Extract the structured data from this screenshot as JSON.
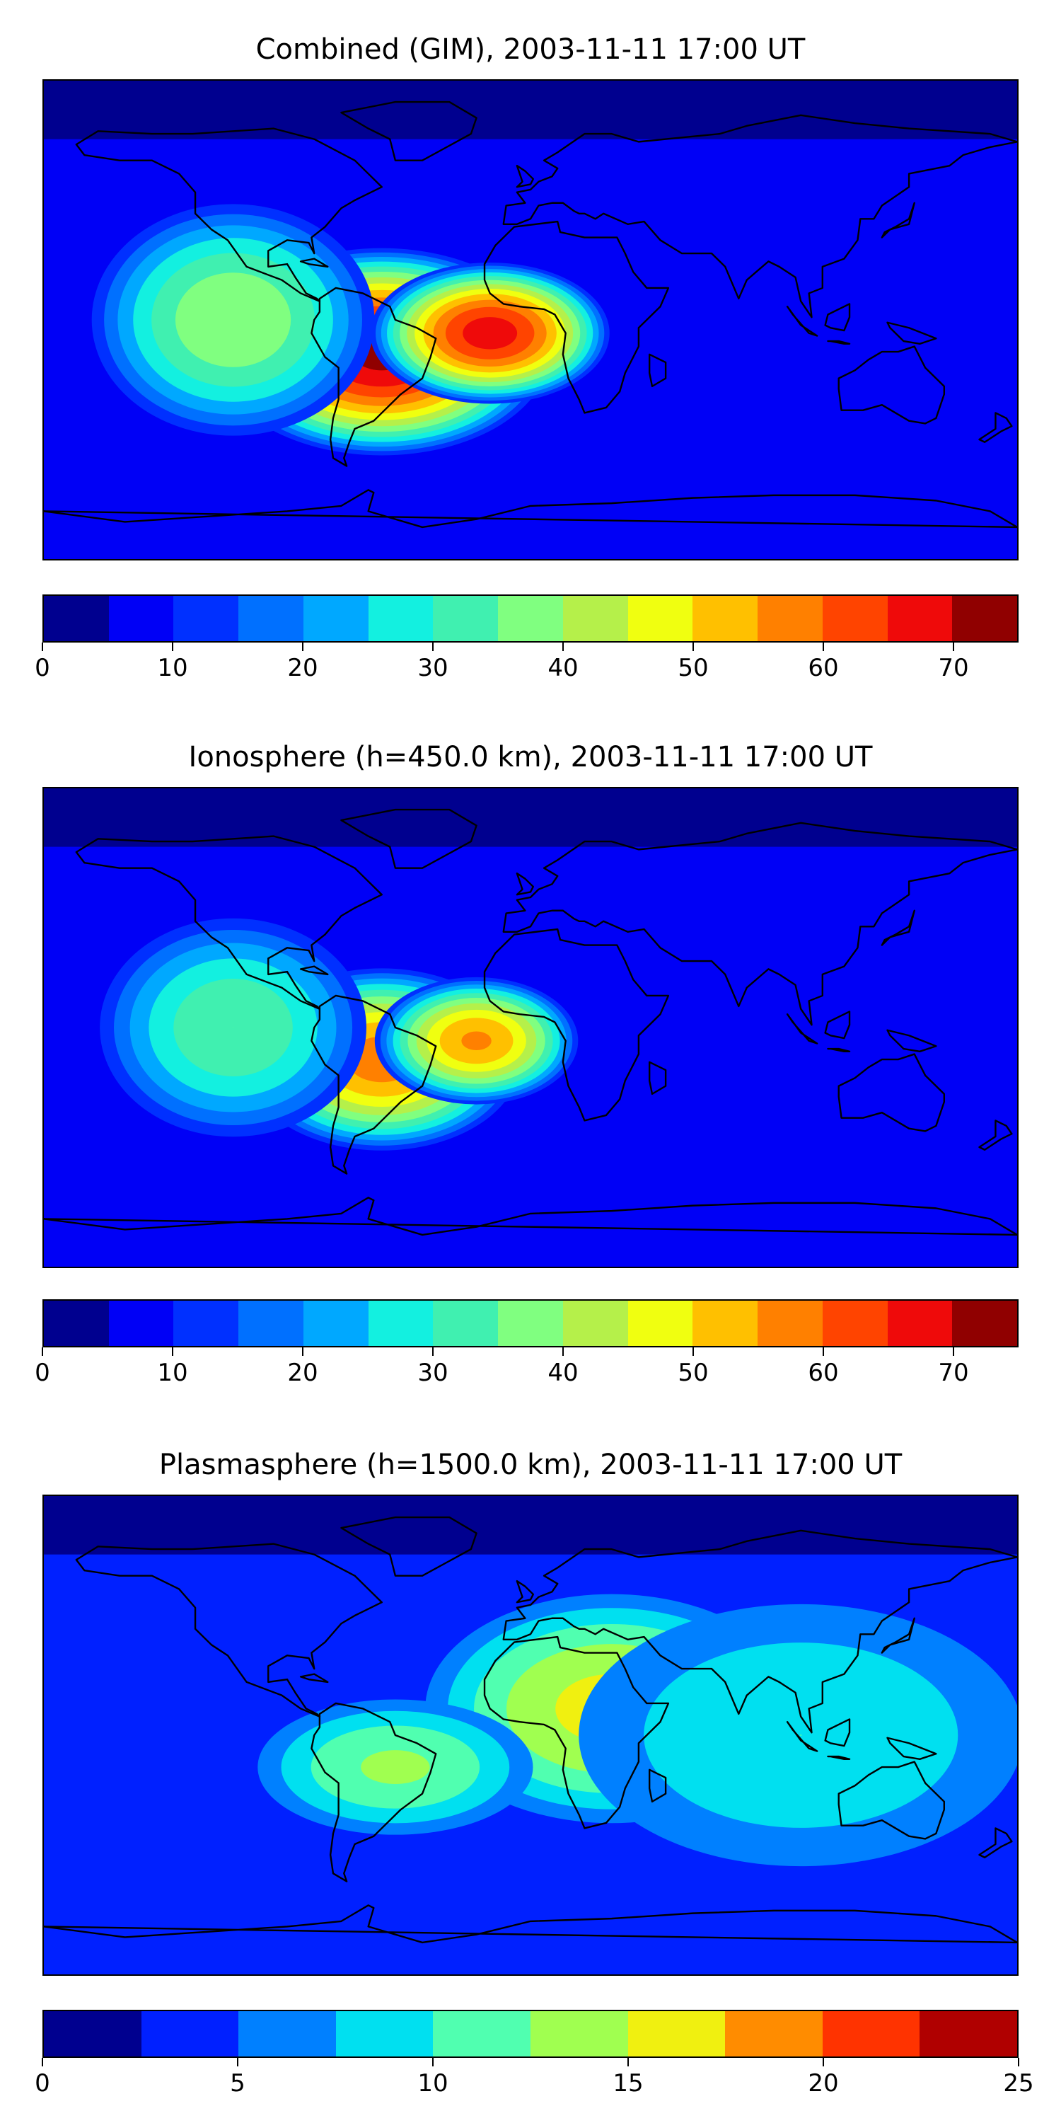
{
  "palette_14": [
    "#00008f",
    "#0000f6",
    "#0030ff",
    "#0070ff",
    "#00a8ff",
    "#13f0e0",
    "#40f0b0",
    "#80ff80",
    "#b5f04a",
    "#f0ff10",
    "#ffc000",
    "#ff8000",
    "#ff4400",
    "#ef0a0a",
    "#900000"
  ],
  "palette_10": [
    "#00008f",
    "#0020ff",
    "#0080ff",
    "#00e0f0",
    "#50ffb0",
    "#a0ff50",
    "#f0f010",
    "#ff8c00",
    "#ff3300",
    "#b00000"
  ],
  "chart_data": [
    {
      "type": "heatmap",
      "title": "Combined (GIM), 2003-11-11 17:00 UT",
      "colorbar": {
        "min": 0,
        "max": 75,
        "step": 5,
        "ticks": [
          0,
          10,
          20,
          30,
          40,
          50,
          60,
          70
        ]
      },
      "hotspots": [
        {
          "lon": -55,
          "lat": -12,
          "peak": 72,
          "spread_lon": 35,
          "spread_lat": 22
        },
        {
          "lon": -15,
          "lat": -5,
          "peak": 68,
          "spread_lon": 25,
          "spread_lat": 15
        },
        {
          "lon": -110,
          "lat": 0,
          "peak": 40,
          "spread_lon": 30,
          "spread_lat": 25
        }
      ],
      "background": 8
    },
    {
      "type": "heatmap",
      "title": "Ionosphere  (h=450.0 km), 2003-11-11 17:00 UT",
      "colorbar": {
        "min": 0,
        "max": 75,
        "step": 5,
        "ticks": [
          0,
          10,
          20,
          30,
          40,
          50,
          60,
          70
        ]
      },
      "hotspots": [
        {
          "lon": -55,
          "lat": -12,
          "peak": 58,
          "spread_lon": 30,
          "spread_lat": 20
        },
        {
          "lon": -20,
          "lat": -5,
          "peak": 56,
          "spread_lon": 22,
          "spread_lat": 14
        },
        {
          "lon": -110,
          "lat": 0,
          "peak": 35,
          "spread_lon": 30,
          "spread_lat": 25
        }
      ],
      "background": 5
    },
    {
      "type": "heatmap",
      "title": "Plasmasphere (h=1500.0 km), 2003-11-11 17:00 UT",
      "colorbar": {
        "min": 0,
        "max": 25,
        "step": 2.5,
        "ticks": [
          0,
          5,
          10,
          15,
          20,
          25
        ]
      },
      "hotspots": [
        {
          "lon": 30,
          "lat": 10,
          "peak": 16,
          "spread_lon": 40,
          "spread_lat": 25
        },
        {
          "lon": -50,
          "lat": -12,
          "peak": 13,
          "spread_lon": 30,
          "spread_lat": 15
        },
        {
          "lon": 100,
          "lat": 0,
          "peak": 10,
          "spread_lon": 50,
          "spread_lat": 30
        }
      ],
      "background": 4
    }
  ],
  "continents": [
    [
      [
        -168,
        66
      ],
      [
        -160,
        71
      ],
      [
        -140,
        70
      ],
      [
        -125,
        70
      ],
      [
        -95,
        72
      ],
      [
        -80,
        68
      ],
      [
        -65,
        60
      ],
      [
        -55,
        50
      ],
      [
        -65,
        45
      ],
      [
        -70,
        42
      ],
      [
        -76,
        35
      ],
      [
        -81,
        31
      ],
      [
        -80,
        25
      ],
      [
        -82,
        29
      ],
      [
        -90,
        30
      ],
      [
        -97,
        26
      ],
      [
        -97,
        20
      ],
      [
        -90,
        21
      ],
      [
        -87,
        16
      ],
      [
        -83,
        10
      ],
      [
        -79,
        8
      ],
      [
        -78,
        7
      ],
      [
        -85,
        10
      ],
      [
        -92,
        15
      ],
      [
        -105,
        20
      ],
      [
        -112,
        30
      ],
      [
        -118,
        34
      ],
      [
        -124,
        40
      ],
      [
        -124,
        48
      ],
      [
        -130,
        55
      ],
      [
        -140,
        60
      ],
      [
        -152,
        60
      ],
      [
        -165,
        62
      ]
    ],
    [
      [
        -78,
        8
      ],
      [
        -72,
        12
      ],
      [
        -62,
        10
      ],
      [
        -52,
        5
      ],
      [
        -50,
        0
      ],
      [
        -42,
        -3
      ],
      [
        -35,
        -7
      ],
      [
        -37,
        -14
      ],
      [
        -40,
        -22
      ],
      [
        -48,
        -28
      ],
      [
        -55,
        -35
      ],
      [
        -58,
        -38
      ],
      [
        -65,
        -41
      ],
      [
        -67,
        -46
      ],
      [
        -69,
        -52
      ],
      [
        -68,
        -55
      ],
      [
        -73,
        -52
      ],
      [
        -74,
        -45
      ],
      [
        -73,
        -37
      ],
      [
        -71,
        -30
      ],
      [
        -71,
        -18
      ],
      [
        -76,
        -14
      ],
      [
        -81,
        -5
      ],
      [
        -80,
        0
      ],
      [
        -78,
        3
      ]
    ],
    [
      [
        -10,
        36
      ],
      [
        -5,
        36
      ],
      [
        0,
        38
      ],
      [
        3,
        43
      ],
      [
        8,
        44
      ],
      [
        12,
        44
      ],
      [
        16,
        41
      ],
      [
        18,
        40
      ],
      [
        20,
        40
      ],
      [
        24,
        38
      ],
      [
        27,
        40
      ],
      [
        36,
        36
      ],
      [
        42,
        37
      ],
      [
        48,
        30
      ],
      [
        56,
        25
      ],
      [
        60,
        25
      ],
      [
        67,
        25
      ],
      [
        72,
        20
      ],
      [
        77,
        8
      ],
      [
        80,
        15
      ],
      [
        88,
        22
      ],
      [
        92,
        20
      ],
      [
        98,
        16
      ],
      [
        100,
        7
      ],
      [
        104,
        1
      ],
      [
        103,
        10
      ],
      [
        108,
        12
      ],
      [
        108,
        20
      ],
      [
        116,
        23
      ],
      [
        121,
        30
      ],
      [
        122,
        38
      ],
      [
        127,
        38
      ],
      [
        130,
        43
      ],
      [
        140,
        50
      ],
      [
        140,
        55
      ],
      [
        155,
        58
      ],
      [
        160,
        62
      ],
      [
        170,
        65
      ],
      [
        180,
        67
      ],
      [
        170,
        70
      ],
      [
        140,
        72
      ],
      [
        120,
        74
      ],
      [
        100,
        77
      ],
      [
        80,
        73
      ],
      [
        70,
        70
      ],
      [
        60,
        69
      ],
      [
        40,
        67
      ],
      [
        30,
        70
      ],
      [
        20,
        70
      ],
      [
        10,
        63
      ],
      [
        5,
        60
      ],
      [
        10,
        57
      ],
      [
        8,
        54
      ],
      [
        3,
        52
      ],
      [
        0,
        49
      ],
      [
        -5,
        48
      ],
      [
        -2,
        44
      ],
      [
        -9,
        43
      ]
    ],
    [
      [
        -17,
        15
      ],
      [
        -17,
        21
      ],
      [
        -13,
        28
      ],
      [
        -6,
        35
      ],
      [
        10,
        37
      ],
      [
        11,
        33
      ],
      [
        20,
        31
      ],
      [
        30,
        31
      ],
      [
        32,
        31
      ],
      [
        35,
        25
      ],
      [
        38,
        18
      ],
      [
        43,
        12
      ],
      [
        51,
        12
      ],
      [
        48,
        5
      ],
      [
        40,
        -3
      ],
      [
        40,
        -10
      ],
      [
        35,
        -20
      ],
      [
        33,
        -27
      ],
      [
        28,
        -33
      ],
      [
        20,
        -35
      ],
      [
        18,
        -30
      ],
      [
        14,
        -22
      ],
      [
        12,
        -13
      ],
      [
        13,
        -5
      ],
      [
        9,
        2
      ],
      [
        5,
        4
      ],
      [
        -4,
        5
      ],
      [
        -10,
        6
      ],
      [
        -15,
        10
      ]
    ],
    [
      [
        114,
        -22
      ],
      [
        114,
        -26
      ],
      [
        115,
        -34
      ],
      [
        123,
        -34
      ],
      [
        130,
        -32
      ],
      [
        135,
        -35
      ],
      [
        140,
        -38
      ],
      [
        146,
        -39
      ],
      [
        150,
        -37
      ],
      [
        153,
        -28
      ],
      [
        153,
        -25
      ],
      [
        146,
        -18
      ],
      [
        142,
        -10
      ],
      [
        136,
        -12
      ],
      [
        130,
        -12
      ],
      [
        125,
        -15
      ],
      [
        120,
        -19
      ]
    ],
    [
      [
        -180,
        -72
      ],
      [
        -150,
        -76
      ],
      [
        -120,
        -74
      ],
      [
        -90,
        -72
      ],
      [
        -70,
        -70
      ],
      [
        -60,
        -64
      ],
      [
        -58,
        -65
      ],
      [
        -60,
        -72
      ],
      [
        -40,
        -78
      ],
      [
        -20,
        -75
      ],
      [
        0,
        -70
      ],
      [
        30,
        -69
      ],
      [
        60,
        -67
      ],
      [
        90,
        -66
      ],
      [
        120,
        -66
      ],
      [
        150,
        -68
      ],
      [
        170,
        -72
      ],
      [
        180,
        -78
      ]
    ],
    [
      [
        -50,
        60
      ],
      [
        -40,
        60
      ],
      [
        -22,
        70
      ],
      [
        -20,
        76
      ],
      [
        -30,
        82
      ],
      [
        -50,
        82
      ],
      [
        -70,
        78
      ],
      [
        -60,
        72
      ],
      [
        -52,
        68
      ]
    ],
    [
      [
        95,
        5
      ],
      [
        100,
        -2
      ],
      [
        106,
        -6
      ],
      [
        103,
        -5
      ],
      [
        97,
        2
      ]
    ],
    [
      [
        110,
        -8
      ],
      [
        114,
        -8
      ],
      [
        118,
        -9
      ],
      [
        116,
        -9
      ],
      [
        111,
        -8
      ]
    ],
    [
      [
        132,
        -1
      ],
      [
        140,
        -3
      ],
      [
        150,
        -7
      ],
      [
        144,
        -9
      ],
      [
        138,
        -8
      ],
      [
        133,
        -3
      ]
    ],
    [
      [
        109,
        -2
      ],
      [
        110,
        2
      ],
      [
        114,
        4
      ],
      [
        118,
        6
      ],
      [
        118,
        1
      ],
      [
        116,
        -4
      ],
      [
        111,
        -3
      ]
    ],
    [
      [
        130,
        31
      ],
      [
        133,
        34
      ],
      [
        140,
        36
      ],
      [
        141,
        40
      ],
      [
        142,
        44
      ],
      [
        140,
        38
      ],
      [
        135,
        35
      ],
      [
        131,
        33
      ]
    ],
    [
      [
        -5,
        50
      ],
      [
        0,
        51
      ],
      [
        1,
        53
      ],
      [
        -2,
        56
      ],
      [
        -5,
        58
      ],
      [
        -4,
        55
      ],
      [
        -3,
        52
      ]
    ],
    [
      [
        44,
        -13
      ],
      [
        50,
        -16
      ],
      [
        50,
        -22
      ],
      [
        45,
        -25
      ],
      [
        44,
        -20
      ]
    ],
    [
      [
        172,
        -35
      ],
      [
        176,
        -37
      ],
      [
        178,
        -40
      ],
      [
        174,
        -42
      ],
      [
        168,
        -46
      ],
      [
        166,
        -45
      ],
      [
        172,
        -41
      ]
    ],
    [
      [
        -85,
        22
      ],
      [
        -80,
        23
      ],
      [
        -75,
        20
      ],
      [
        -82,
        21
      ]
    ]
  ]
}
